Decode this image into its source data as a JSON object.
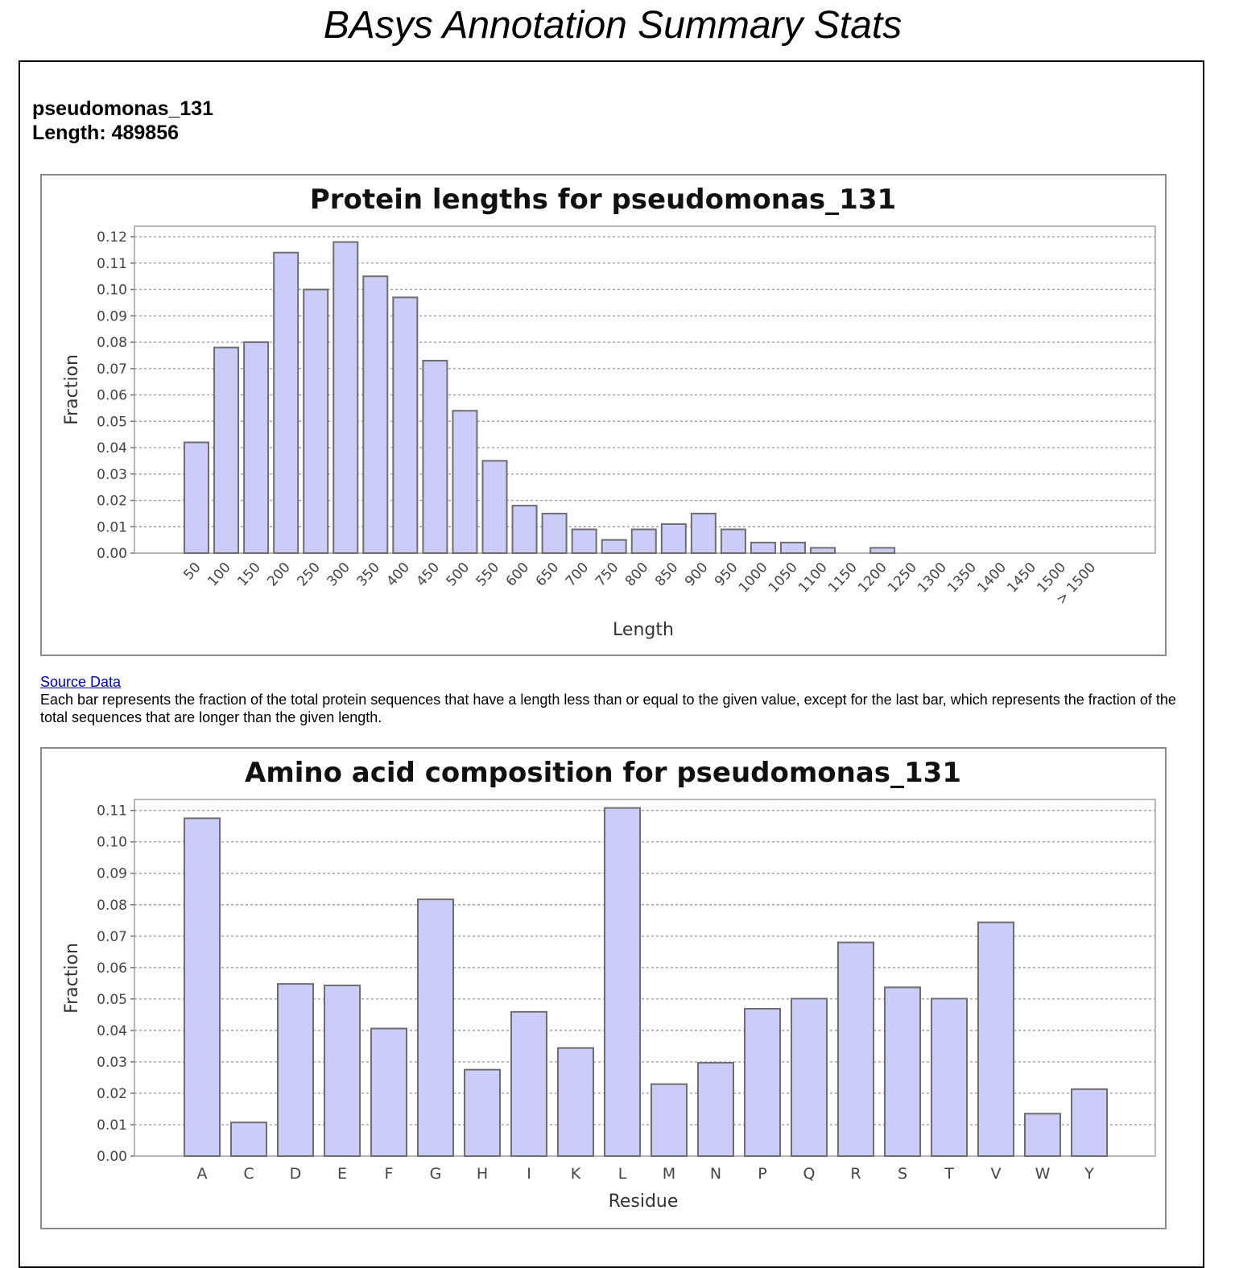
{
  "page": {
    "title": "BAsys Annotation Summary Stats",
    "genome_name": "pseudomonas_131",
    "genome_length_text": "Length: 489856",
    "source_link": "Source Data",
    "note": "Each bar represents the fraction of the total protein sequences that have a length less than or equal to the given value, except for the last bar, which represents the fraction of the total sequences that are longer than the given length."
  },
  "colors": {
    "bar_fill": "#ccccf8",
    "bar_stroke": "#6e6e6e",
    "grid": "#a0a0a0",
    "plot_border": "#b8b8b8",
    "link": "#0000b0"
  },
  "chart_data": [
    {
      "type": "bar",
      "title": "Protein lengths for pseudomonas_131",
      "xlabel": "Length",
      "ylabel": "Fraction",
      "ylim": [
        0,
        0.124
      ],
      "yticks": [
        0.0,
        0.01,
        0.02,
        0.03,
        0.04,
        0.05,
        0.06,
        0.07,
        0.08,
        0.09,
        0.1,
        0.11,
        0.12
      ],
      "ytick_labels": [
        "0.00",
        "0.01",
        "0.02",
        "0.03",
        "0.04",
        "0.05",
        "0.06",
        "0.07",
        "0.08",
        "0.09",
        "0.10",
        "0.11",
        "0.12"
      ],
      "grid": true,
      "categories": [
        "50",
        "100",
        "150",
        "200",
        "250",
        "300",
        "350",
        "400",
        "450",
        "500",
        "550",
        "600",
        "650",
        "700",
        "750",
        "800",
        "850",
        "900",
        "950",
        "1000",
        "1050",
        "1100",
        "1150",
        "1200",
        "1250",
        "1300",
        "1350",
        "1400",
        "1450",
        "1500",
        "> 1500"
      ],
      "values": [
        0.042,
        0.078,
        0.08,
        0.114,
        0.1,
        0.118,
        0.105,
        0.097,
        0.073,
        0.054,
        0.035,
        0.018,
        0.015,
        0.009,
        0.005,
        0.009,
        0.011,
        0.015,
        0.009,
        0.004,
        0.004,
        0.002,
        0.0,
        0.002,
        0.0,
        0.0,
        0.0,
        0.0,
        0.0,
        0.0,
        0.0
      ]
    },
    {
      "type": "bar",
      "title": "Amino acid composition for pseudomonas_131",
      "xlabel": "Residue",
      "ylabel": "Fraction",
      "ylim": [
        0,
        0.1135
      ],
      "yticks": [
        0.0,
        0.01,
        0.02,
        0.03,
        0.04,
        0.05,
        0.06,
        0.07,
        0.08,
        0.09,
        0.1,
        0.11
      ],
      "ytick_labels": [
        "0.00",
        "0.01",
        "0.02",
        "0.03",
        "0.04",
        "0.05",
        "0.06",
        "0.07",
        "0.08",
        "0.09",
        "0.10",
        "0.11"
      ],
      "grid": true,
      "categories": [
        "A",
        "C",
        "D",
        "E",
        "F",
        "G",
        "H",
        "I",
        "K",
        "L",
        "M",
        "N",
        "P",
        "Q",
        "R",
        "S",
        "T",
        "V",
        "W",
        "Y"
      ],
      "values": [
        0.1075,
        0.0107,
        0.0548,
        0.0543,
        0.0406,
        0.0817,
        0.0275,
        0.0459,
        0.0344,
        0.1108,
        0.0229,
        0.0297,
        0.0469,
        0.0501,
        0.068,
        0.0537,
        0.0501,
        0.0744,
        0.0135,
        0.0213
      ]
    }
  ]
}
